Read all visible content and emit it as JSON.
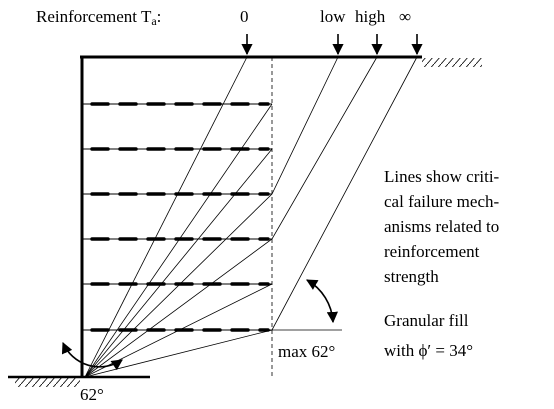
{
  "header": {
    "title": "Reinforcement T",
    "subscript": "a",
    "suffix": ":",
    "markers": [
      "0",
      "low",
      "high",
      "∞"
    ]
  },
  "note": [
    "Lines show criti-",
    "cal failure mech-",
    "anisms related to",
    "reinforcement",
    "strength"
  ],
  "fill": [
    "Granular fill",
    "with ϕ′ = 34°"
  ],
  "angles": {
    "max": "max 62°",
    "base": "62°"
  }
}
